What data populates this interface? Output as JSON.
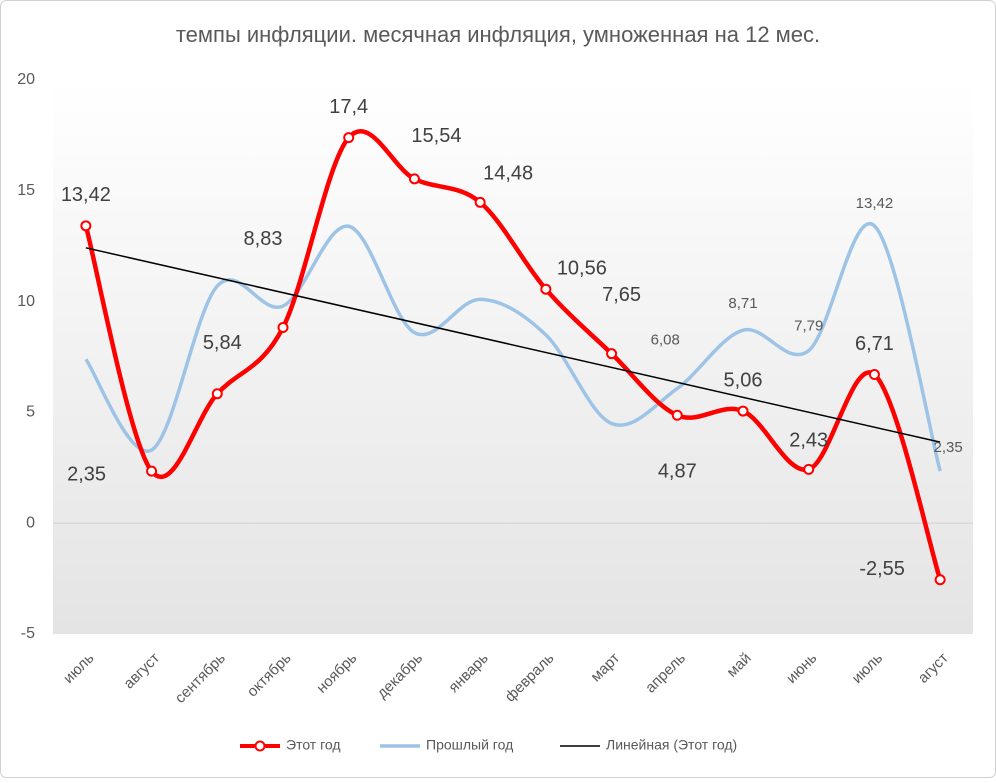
{
  "chart_data": {
    "type": "line",
    "title": "темпы инфляции. месячная инфляция, умноженная на 12 мес.",
    "categories": [
      "июль",
      "август",
      "сентябрь",
      "октябрь",
      "ноябрь",
      "декабрь",
      "январь",
      "февраль",
      "март",
      "апрель",
      "май",
      "июнь",
      "июль",
      "агуст"
    ],
    "series": [
      {
        "name": "Этот год",
        "color": "#ff0000",
        "values": [
          13.42,
          2.35,
          5.84,
          8.83,
          17.4,
          15.54,
          14.48,
          10.56,
          7.65,
          4.87,
          5.06,
          2.43,
          6.71,
          -2.55
        ],
        "value_labels": [
          "13,42",
          "2,35",
          "5,84",
          "8,83",
          "17,4",
          "15,54",
          "14,48",
          "10,56",
          "7,65",
          "4,87",
          "5,06",
          "2,43",
          "6,71",
          "-2,55"
        ]
      },
      {
        "name": "Прошлый год",
        "color": "#9dc3e6",
        "values": [
          7.4,
          3.3,
          10.7,
          9.8,
          13.4,
          8.6,
          10.1,
          8.5,
          4.5,
          6.08,
          8.71,
          7.79,
          13.42,
          2.35
        ],
        "value_labels": [
          null,
          null,
          null,
          null,
          null,
          null,
          null,
          null,
          null,
          "6,08",
          "8,71",
          "7,79",
          "13,42",
          "2,35"
        ]
      }
    ],
    "trendline": {
      "name": "Линейная (Этот год)",
      "color": "#000000"
    },
    "ylim": [
      -5,
      20
    ],
    "yticks": [
      -5,
      0,
      5,
      10,
      15,
      20
    ],
    "grid": false,
    "legend": "bottom"
  }
}
